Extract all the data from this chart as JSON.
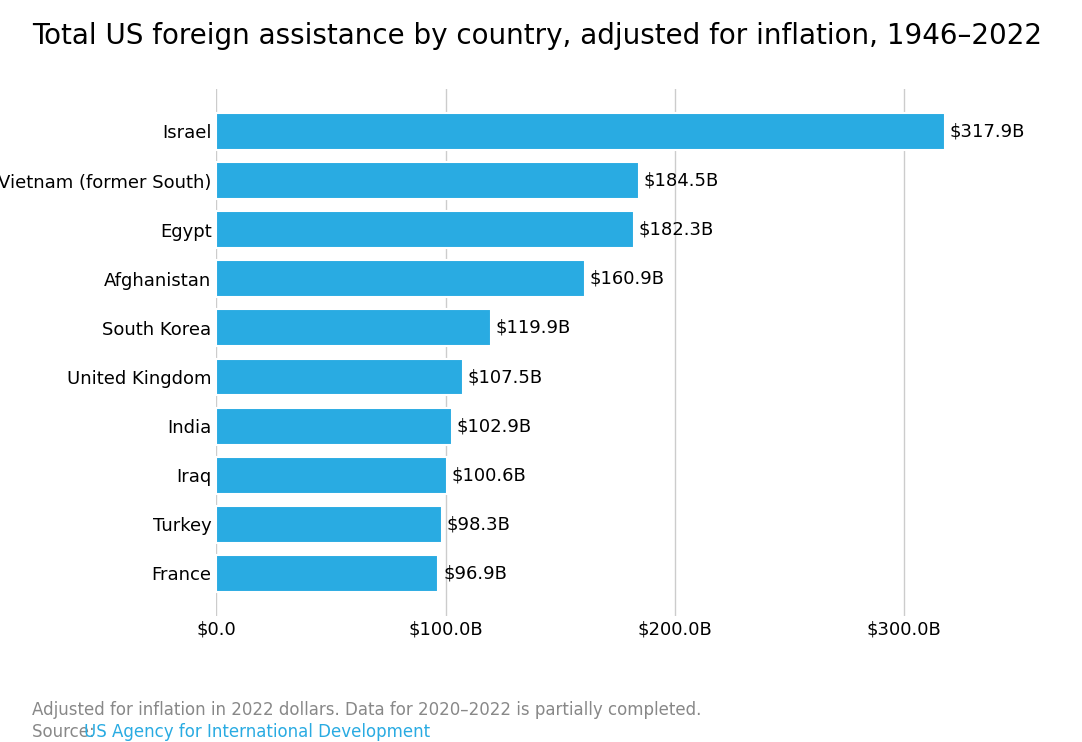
{
  "title": "Total US foreign assistance by country, adjusted for inflation, 1946–2022",
  "countries": [
    "Israel",
    "Vietnam (former South)",
    "Egypt",
    "Afghanistan",
    "South Korea",
    "United Kingdom",
    "India",
    "Iraq",
    "Turkey",
    "France"
  ],
  "values": [
    317.9,
    184.5,
    182.3,
    160.9,
    119.9,
    107.5,
    102.9,
    100.6,
    98.3,
    96.9
  ],
  "labels": [
    "$317.9B",
    "$184.5B",
    "$182.3B",
    "$160.9B",
    "$119.9B",
    "$107.5B",
    "$102.9B",
    "$100.6B",
    "$98.3B",
    "$96.9B"
  ],
  "bar_color": "#29ABE2",
  "background_color": "#FFFFFF",
  "title_fontsize": 20,
  "label_fontsize": 13,
  "tick_fontsize": 13,
  "footer_fontsize": 12,
  "xlim": [
    0,
    340
  ],
  "xticks": [
    0,
    100,
    200,
    300
  ],
  "xtick_labels": [
    "$0.0",
    "$100.0B",
    "$200.0B",
    "$300.0B"
  ],
  "footnote_text": "Adjusted for inflation in 2022 dollars. Data for 2020–2022 is partially completed.",
  "source_prefix": "Source: ",
  "source_link_text": "US Agency for International Development",
  "source_link_color": "#29ABE2",
  "footnote_color": "#888888",
  "grid_color": "#CCCCCC",
  "bar_gap": 0.25
}
